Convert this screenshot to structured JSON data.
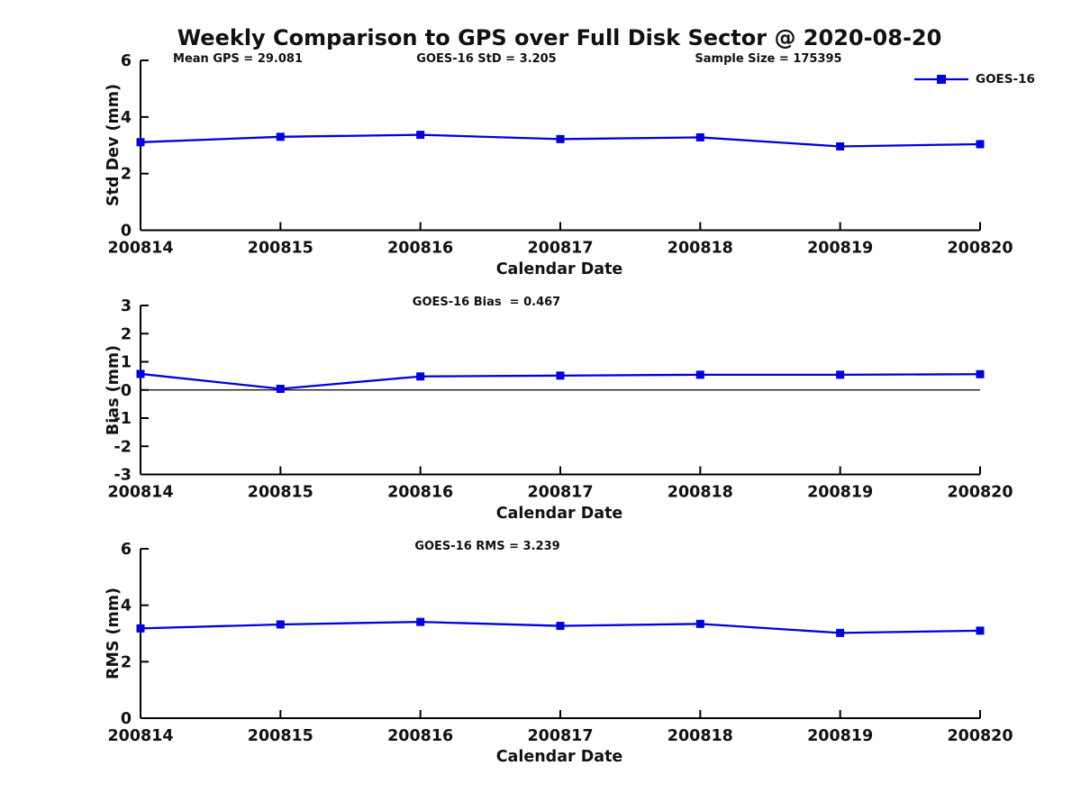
{
  "figure": {
    "title": "Weekly Comparison to GPS over Full Disk Sector @ 2020-08-20",
    "legend": {
      "label": "GOES-16"
    },
    "colors": {
      "series": "#0000dd",
      "axis": "#000000",
      "ref_line": "#000000"
    }
  },
  "chart_data": [
    {
      "type": "line",
      "annotations": [
        "Mean GPS = 29.081",
        "GOES-16 StD = 3.205",
        "Sample Size = 175395"
      ],
      "categories": [
        "200814",
        "200815",
        "200816",
        "200817",
        "200818",
        "200819",
        "200820"
      ],
      "series": [
        {
          "name": "GOES-16",
          "values": [
            3.11,
            3.3,
            3.37,
            3.22,
            3.28,
            2.96,
            3.04
          ]
        }
      ],
      "xlabel": "Calendar Date",
      "ylabel": "Std Dev (mm)",
      "ylim": [
        0,
        6
      ],
      "yticks": [
        0,
        2,
        4,
        6
      ],
      "grid": false,
      "legend_position": "top-right",
      "marker": "square"
    },
    {
      "type": "line",
      "annotations": [
        "GOES-16 Bias  = 0.467"
      ],
      "categories": [
        "200814",
        "200815",
        "200816",
        "200817",
        "200818",
        "200819",
        "200820"
      ],
      "series": [
        {
          "name": "GOES-16",
          "values": [
            0.57,
            0.04,
            0.48,
            0.51,
            0.54,
            0.54,
            0.56
          ]
        }
      ],
      "xlabel": "Calendar Date",
      "ylabel": "Bias (mm)",
      "ylim": [
        -3,
        3
      ],
      "yticks": [
        -3,
        -2,
        -1,
        0,
        1,
        2,
        3
      ],
      "ref_line_y": 0,
      "grid": false,
      "marker": "square"
    },
    {
      "type": "line",
      "annotations": [
        "GOES-16 RMS = 3.239"
      ],
      "categories": [
        "200814",
        "200815",
        "200816",
        "200817",
        "200818",
        "200819",
        "200820"
      ],
      "series": [
        {
          "name": "GOES-16",
          "values": [
            3.18,
            3.32,
            3.41,
            3.27,
            3.34,
            3.02,
            3.1
          ]
        }
      ],
      "xlabel": "Calendar Date",
      "ylabel": "RMS (mm)",
      "ylim": [
        0,
        6
      ],
      "yticks": [
        0,
        2,
        4,
        6
      ],
      "grid": false,
      "marker": "square"
    }
  ]
}
